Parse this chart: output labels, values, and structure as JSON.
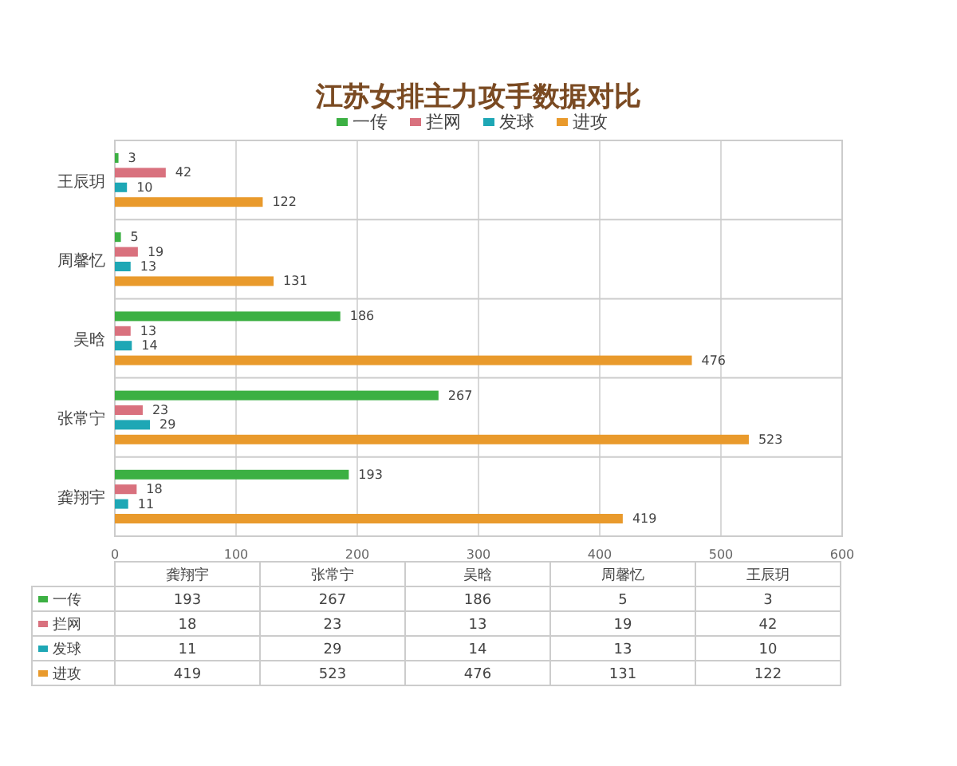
{
  "chart_data": [
    {
      "type": "bar",
      "orientation": "horizontal",
      "title": "江苏女排主力攻手数据对比",
      "categories": [
        "王辰玥",
        "周馨忆",
        "吴晗",
        "张常宁",
        "龚翔宇"
      ],
      "series": [
        {
          "name": "一传",
          "color": "#3cb043",
          "values": [
            3,
            5,
            186,
            267,
            193
          ]
        },
        {
          "name": "拦网",
          "color": "#d9717e",
          "values": [
            42,
            19,
            13,
            23,
            18
          ]
        },
        {
          "name": "发球",
          "color": "#1ea7b5",
          "values": [
            10,
            13,
            14,
            29,
            11
          ]
        },
        {
          "name": "进攻",
          "color": "#e99a2c",
          "values": [
            122,
            131,
            476,
            523,
            419
          ]
        }
      ],
      "xlim": [
        0,
        600
      ],
      "xticks": [
        0,
        100,
        200,
        300,
        400,
        500,
        600
      ],
      "grid": "x",
      "legend": "top",
      "data_labels": true
    },
    {
      "type": "other",
      "categories": [
        "龚翔宇",
        "张常宁",
        "吴晗",
        "周馨忆",
        "王辰玥"
      ],
      "series": [
        {
          "name": "一传",
          "color": "#3cb043",
          "values": [
            193,
            267,
            186,
            5,
            3
          ]
        },
        {
          "name": "拦网",
          "color": "#d9717e",
          "values": [
            18,
            23,
            13,
            19,
            42
          ]
        },
        {
          "name": "发球",
          "color": "#1ea7b5",
          "values": [
            11,
            29,
            14,
            13,
            10
          ]
        },
        {
          "name": "进攻",
          "color": "#e99a2c",
          "values": [
            419,
            523,
            476,
            131,
            122
          ]
        }
      ],
      "legend": "left",
      "data_labels": true
    }
  ]
}
